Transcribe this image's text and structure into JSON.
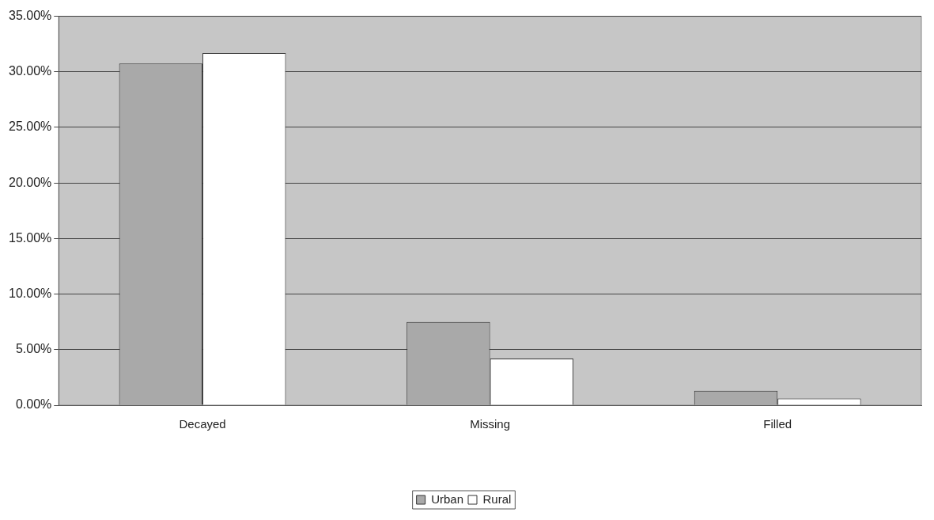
{
  "chart_data": {
    "type": "bar",
    "categories": [
      "Decayed",
      "Missing",
      "Filled"
    ],
    "series": [
      {
        "name": "Urban",
        "color": "#a9a9a9",
        "values": [
          30.75,
          7.5,
          1.3
        ]
      },
      {
        "name": "Rural",
        "color": "#ffffff",
        "values": [
          31.7,
          4.2,
          0.6
        ]
      }
    ],
    "ylim": [
      0,
      35
    ],
    "yticks": [
      {
        "value": 0,
        "label": "0.00%"
      },
      {
        "value": 5,
        "label": "5.00%"
      },
      {
        "value": 10,
        "label": "10.00%"
      },
      {
        "value": 15,
        "label": "15.00%"
      },
      {
        "value": 20,
        "label": "20.00%"
      },
      {
        "value": 25,
        "label": "25.00%"
      },
      {
        "value": 30,
        "label": "30.00%"
      },
      {
        "value": 35,
        "label": "35.00%"
      }
    ],
    "grid": "y",
    "legend": "bottom"
  }
}
